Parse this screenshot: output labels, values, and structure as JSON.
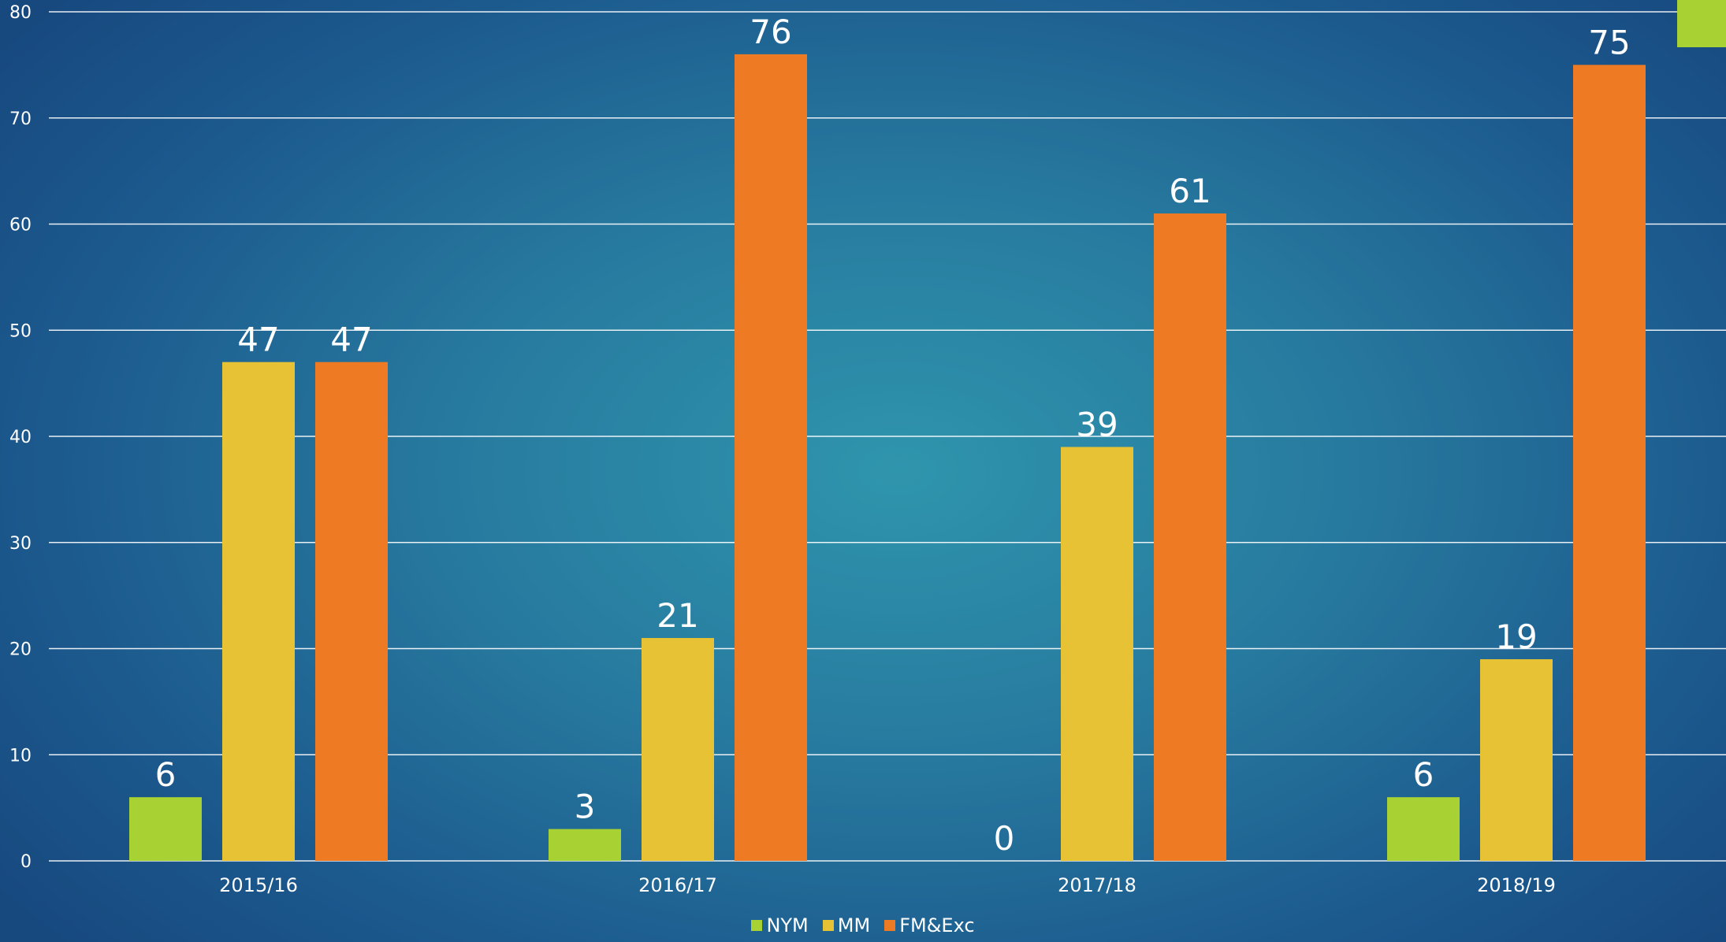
{
  "colors": {
    "accent": "#a8d233",
    "gridline": "#ffffff",
    "text": "#ffffff"
  },
  "chart_data": {
    "type": "bar",
    "title": "",
    "xlabel": "",
    "ylabel": "",
    "ylim": [
      0,
      80
    ],
    "yticks": [
      0,
      10,
      20,
      30,
      40,
      50,
      60,
      70,
      80
    ],
    "grid": true,
    "legend_position": "bottom",
    "categories": [
      "2015/16",
      "2016/17",
      "2017/18",
      "2018/19"
    ],
    "series": [
      {
        "name": "NYM",
        "color": "#a8d233",
        "values": [
          6,
          3,
          0,
          6
        ]
      },
      {
        "name": "MM",
        "color": "#e6c234",
        "values": [
          47,
          21,
          39,
          19
        ]
      },
      {
        "name": "FM&Exc",
        "color": "#ee7a24",
        "values": [
          47,
          76,
          61,
          75
        ]
      }
    ]
  }
}
